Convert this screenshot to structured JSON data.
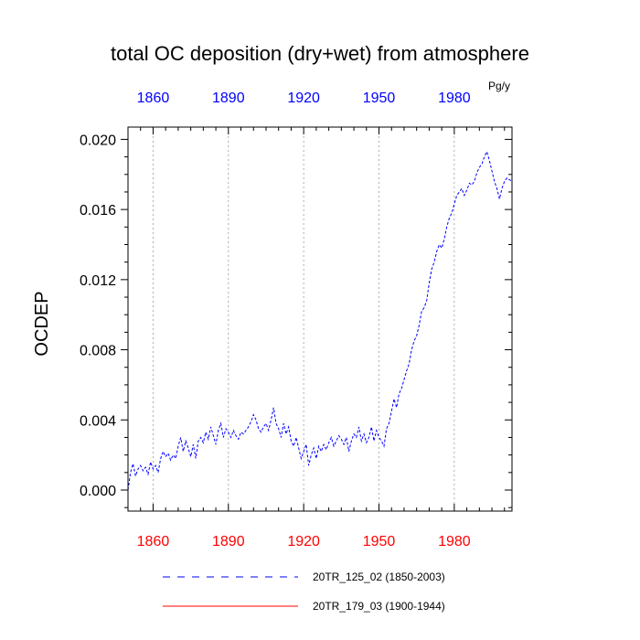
{
  "chart_data": {
    "type": "line",
    "title": "total OC deposition (dry+wet) from atmosphere",
    "units": "Pg/y",
    "ylabel": "OCDEP",
    "xlabel": "",
    "xlim": [
      1850,
      2003
    ],
    "ylim": [
      -0.0012,
      0.0207
    ],
    "yticks": [
      0.0,
      0.004,
      0.008,
      0.012,
      0.016,
      0.02
    ],
    "ytick_labels": [
      "0.000",
      "0.004",
      "0.008",
      "0.012",
      "0.016",
      "0.020"
    ],
    "xticks": [
      1860,
      1890,
      1920,
      1950,
      1980
    ],
    "xtick_labels": [
      "1860",
      "1890",
      "1920",
      "1950",
      "1980"
    ],
    "top_axis_color": "#0000ff",
    "bottom_axis_color": "#ff0000",
    "vertical_gridlines": true,
    "series": [
      {
        "name": "20TR_125_02 (1850-2003)",
        "color": "#0000ff",
        "style": "dashed",
        "x": [
          1850,
          1851,
          1852,
          1853,
          1854,
          1855,
          1856,
          1857,
          1858,
          1859,
          1860,
          1861,
          1862,
          1863,
          1864,
          1865,
          1866,
          1867,
          1868,
          1869,
          1870,
          1871,
          1872,
          1873,
          1874,
          1875,
          1876,
          1877,
          1878,
          1879,
          1880,
          1881,
          1882,
          1883,
          1884,
          1885,
          1886,
          1887,
          1888,
          1889,
          1890,
          1891,
          1892,
          1893,
          1894,
          1895,
          1896,
          1897,
          1898,
          1899,
          1900,
          1901,
          1902,
          1903,
          1904,
          1905,
          1906,
          1907,
          1908,
          1909,
          1910,
          1911,
          1912,
          1913,
          1914,
          1915,
          1916,
          1917,
          1918,
          1919,
          1920,
          1921,
          1922,
          1923,
          1924,
          1925,
          1926,
          1927,
          1928,
          1929,
          1930,
          1931,
          1932,
          1933,
          1934,
          1935,
          1936,
          1937,
          1938,
          1939,
          1940,
          1941,
          1942,
          1943,
          1944,
          1945,
          1946,
          1947,
          1948,
          1949,
          1950,
          1951,
          1952,
          1953,
          1954,
          1955,
          1956,
          1957,
          1958,
          1959,
          1960,
          1961,
          1962,
          1963,
          1964,
          1965,
          1966,
          1967,
          1968,
          1969,
          1970,
          1971,
          1972,
          1973,
          1974,
          1975,
          1976,
          1977,
          1978,
          1979,
          1980,
          1981,
          1982,
          1983,
          1984,
          1985,
          1986,
          1987,
          1988,
          1989,
          1990,
          1991,
          1992,
          1993,
          1994,
          1995,
          1996,
          1997,
          1998,
          1999,
          2000,
          2001,
          2002,
          2003
        ],
        "values": [
          0.0,
          0.001,
          0.0015,
          0.0008,
          0.0012,
          0.0014,
          0.0011,
          0.0013,
          0.0009,
          0.0016,
          0.0012,
          0.0014,
          0.001,
          0.0018,
          0.0022,
          0.0019,
          0.0021,
          0.0017,
          0.002,
          0.0018,
          0.0025,
          0.003,
          0.0022,
          0.0028,
          0.0024,
          0.0019,
          0.0026,
          0.0018,
          0.0028,
          0.003,
          0.0027,
          0.0033,
          0.0029,
          0.0036,
          0.0031,
          0.0026,
          0.0034,
          0.0038,
          0.003,
          0.0035,
          0.0033,
          0.003,
          0.0034,
          0.0031,
          0.0029,
          0.0033,
          0.0032,
          0.0034,
          0.0036,
          0.0039,
          0.0043,
          0.004,
          0.0035,
          0.0033,
          0.0036,
          0.0038,
          0.0034,
          0.004,
          0.0047,
          0.0038,
          0.0035,
          0.003,
          0.0038,
          0.0032,
          0.0036,
          0.0028,
          0.0025,
          0.003,
          0.0024,
          0.0018,
          0.0022,
          0.0026,
          0.0014,
          0.002,
          0.0024,
          0.0018,
          0.0025,
          0.0022,
          0.0026,
          0.0023,
          0.0027,
          0.003,
          0.0025,
          0.0028,
          0.0031,
          0.0029,
          0.0026,
          0.003,
          0.0022,
          0.0028,
          0.0032,
          0.003,
          0.0036,
          0.0028,
          0.0032,
          0.0027,
          0.003,
          0.0036,
          0.0028,
          0.0034,
          0.003,
          0.0028,
          0.0025,
          0.0035,
          0.0038,
          0.0045,
          0.0052,
          0.0047,
          0.0055,
          0.0058,
          0.0063,
          0.0068,
          0.0072,
          0.008,
          0.0085,
          0.0088,
          0.0094,
          0.0102,
          0.0104,
          0.0108,
          0.0118,
          0.0126,
          0.013,
          0.0136,
          0.014,
          0.0138,
          0.0143,
          0.015,
          0.0155,
          0.0158,
          0.0163,
          0.0168,
          0.017,
          0.0172,
          0.0168,
          0.0171,
          0.0175,
          0.0174,
          0.0176,
          0.0181,
          0.0184,
          0.0186,
          0.019,
          0.0193,
          0.0188,
          0.0182,
          0.0176,
          0.0172,
          0.0166,
          0.0172,
          0.0176,
          0.0178,
          0.0177,
          0.0176
        ]
      },
      {
        "name": "20TR_179_03 (1900-1944)",
        "color": "#ff0000",
        "style": "solid",
        "x": [],
        "values": []
      }
    ],
    "legend_position": "bottom"
  }
}
